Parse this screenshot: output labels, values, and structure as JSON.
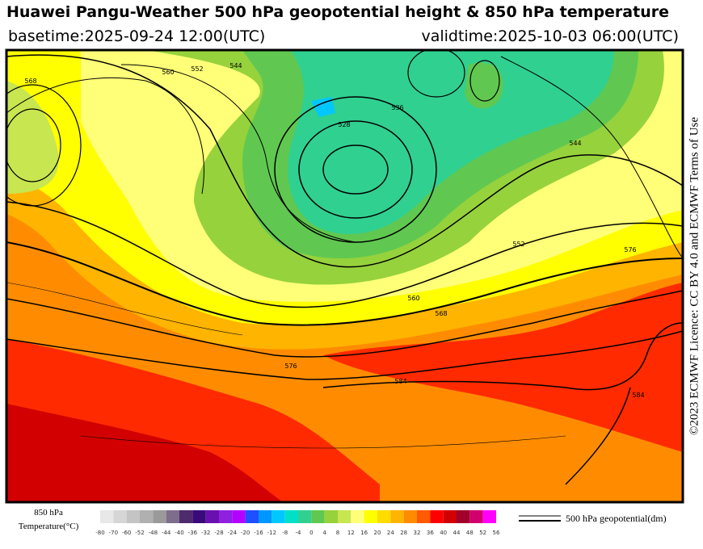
{
  "header": {
    "title": "Huawei Pangu-Weather 500 hPa geopotential height & 850 hPa temperature",
    "basetime": "basetime:2025-09-24 12:00(UTC)",
    "validtime": "validtime:2025-10-03 06:00(UTC)"
  },
  "license": "©2023 ECMWF Licence: CC BY 4.0 and ECMWF Terms of Use",
  "map": {
    "contour_labels": [
      "568",
      "560",
      "552",
      "544",
      "536",
      "528",
      "544",
      "552",
      "560",
      "568",
      "576",
      "584",
      "576",
      "584"
    ]
  },
  "colorbar": {
    "title_lines": [
      "850 hPa",
      "Temperature(°C)"
    ],
    "ticks": [
      -80,
      -70,
      -60,
      -52,
      -48,
      -44,
      -40,
      -36,
      -32,
      -28,
      -24,
      -20,
      -16,
      -12,
      -8,
      -4,
      0,
      4,
      8,
      12,
      16,
      20,
      24,
      28,
      32,
      36,
      40,
      44,
      48,
      52,
      56
    ],
    "colors": [
      "#e8e8e8",
      "#d6d6d6",
      "#c4c4c4",
      "#b0b0b0",
      "#9a9a9a",
      "#7e6e8c",
      "#4e2a6e",
      "#3a0a7a",
      "#6a10b0",
      "#9020e0",
      "#b400ff",
      "#1e50ff",
      "#0096ff",
      "#00c8ff",
      "#00e0c8",
      "#30d090",
      "#60c850",
      "#96d23c",
      "#c8e650",
      "#ffff78",
      "#ffff00",
      "#ffdc00",
      "#ffb400",
      "#ff8c00",
      "#ff5a00",
      "#ff0000",
      "#d20000",
      "#a0002a",
      "#d2006e",
      "#ff00ff"
    ]
  },
  "legend": {
    "label": "500 hPa geopotential(dm)"
  }
}
